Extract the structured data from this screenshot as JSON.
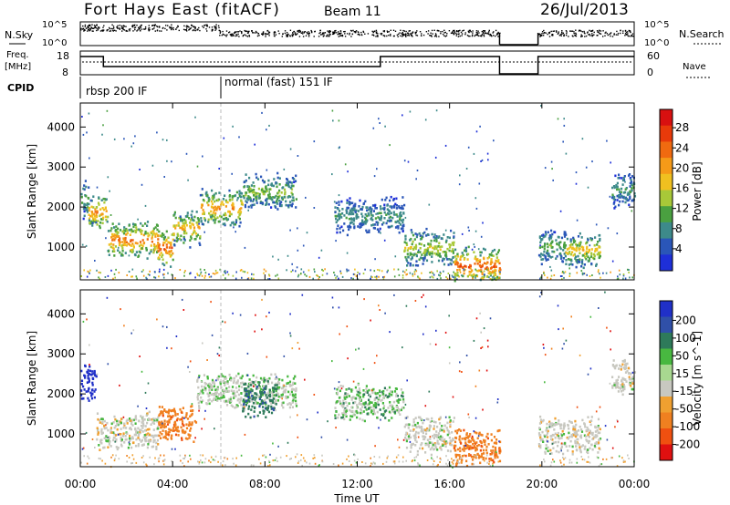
{
  "header": {
    "station": "Fort Hays East (fitACF)",
    "beam": "Beam 11",
    "date": "26/Jul/2013"
  },
  "top_panels": {
    "nsky_label": "N.Sky",
    "nsearch_label": "N.Search",
    "count_ticks": [
      "10^5",
      "10^0"
    ],
    "freq_label": "Freq.",
    "freq_unit": "[MHz]",
    "freq_ticks": [
      "18",
      "8"
    ],
    "nave_label": "Nave",
    "nave_ticks": [
      "60",
      "0"
    ],
    "cpid_label": "CPID",
    "cpid_segments": [
      "rbsp 200 IF",
      "normal (fast) 151 IF"
    ]
  },
  "x_axis": {
    "label": "Time UT",
    "ticks": [
      "00:00",
      "04:00",
      "08:00",
      "12:00",
      "16:00",
      "20:00",
      "00:00"
    ]
  },
  "y_axis": {
    "label": "Slant Range [km]",
    "ticks": [
      "1000",
      "2000",
      "3000",
      "4000"
    ]
  },
  "power_scale": {
    "label": "Power [dB]",
    "ticks": [
      "4",
      "8",
      "12",
      "16",
      "20",
      "24",
      "28"
    ],
    "colors": [
      "#1e2fd8",
      "#2a56b8",
      "#3d8a8a",
      "#4aa040",
      "#a8c838",
      "#f0c020",
      "#f59a18",
      "#f06a10",
      "#e83a0a",
      "#d81010"
    ]
  },
  "velocity_scale": {
    "label": "Velocity [m s^-1]",
    "ticks": [
      "200",
      "100",
      "50",
      "15",
      "-15",
      "-50",
      "-100",
      "-200"
    ],
    "colors": [
      "#2030c8",
      "#3050a8",
      "#2e7a5a",
      "#48b840",
      "#a8d890",
      "#c8c8c0",
      "#f0a030",
      "#f08020",
      "#f05010",
      "#e01010"
    ]
  },
  "chart_data": [
    {
      "type": "heatmap",
      "title": "Power [dB]",
      "xlabel": "Time UT",
      "ylabel": "Slant Range [km]",
      "xlim": [
        "00:00",
        "24:00"
      ],
      "ylim": [
        180,
        4600
      ],
      "clim": [
        0,
        32
      ],
      "data_gap": [
        "18:10",
        "19:50"
      ],
      "backscatter_bands": [
        {
          "start": "00:00",
          "end": "00:20",
          "range_km": 2200,
          "power_db": 12
        },
        {
          "start": "00:20",
          "end": "01:10",
          "range_km": 1900,
          "power_db": 22
        },
        {
          "start": "01:10",
          "end": "03:20",
          "range_km": 1200,
          "power_db": 24
        },
        {
          "start": "03:20",
          "end": "04:00",
          "range_km": 1000,
          "power_db": 26
        },
        {
          "start": "04:00",
          "end": "05:10",
          "range_km": 1500,
          "power_db": 20
        },
        {
          "start": "05:10",
          "end": "07:00",
          "range_km": 2000,
          "power_db": 22
        },
        {
          "start": "07:00",
          "end": "09:20",
          "range_km": 2400,
          "power_db": 14
        },
        {
          "start": "11:00",
          "end": "14:00",
          "range_km": 1800,
          "power_db": 10
        },
        {
          "start": "14:00",
          "end": "16:10",
          "range_km": 1000,
          "power_db": 16
        },
        {
          "start": "16:10",
          "end": "18:10",
          "range_km": 550,
          "power_db": 26
        },
        {
          "start": "19:50",
          "end": "21:00",
          "range_km": 1050,
          "power_db": 12
        },
        {
          "start": "21:00",
          "end": "22:30",
          "range_km": 950,
          "power_db": 18
        },
        {
          "start": "23:00",
          "end": "24:00",
          "range_km": 2450,
          "power_db": 10
        }
      ]
    },
    {
      "type": "heatmap",
      "title": "Velocity [m s^-1]",
      "xlabel": "Time UT",
      "ylabel": "Slant Range [km]",
      "xlim": [
        "00:00",
        "24:00"
      ],
      "ylim": [
        180,
        4600
      ],
      "clim": [
        -250,
        250
      ],
      "data_gap": [
        "18:10",
        "19:50"
      ],
      "backscatter_bands": [
        {
          "start": "00:00",
          "end": "00:40",
          "range_km": 2300,
          "velocity": 180
        },
        {
          "start": "00:40",
          "end": "03:20",
          "range_km": 1100,
          "velocity": 0
        },
        {
          "start": "03:20",
          "end": "05:00",
          "range_km": 1300,
          "velocity": -60
        },
        {
          "start": "05:00",
          "end": "09:20",
          "range_km": 2100,
          "velocity": 10
        },
        {
          "start": "07:00",
          "end": "08:30",
          "range_km": 1900,
          "velocity": 60
        },
        {
          "start": "11:00",
          "end": "14:00",
          "range_km": 1800,
          "velocity": 20
        },
        {
          "start": "14:00",
          "end": "16:10",
          "range_km": 1000,
          "velocity": 0
        },
        {
          "start": "16:10",
          "end": "18:10",
          "range_km": 700,
          "velocity": -60
        },
        {
          "start": "19:50",
          "end": "22:30",
          "range_km": 1000,
          "velocity": 0
        },
        {
          "start": "23:00",
          "end": "24:00",
          "range_km": 2450,
          "velocity": 0
        }
      ]
    }
  ]
}
